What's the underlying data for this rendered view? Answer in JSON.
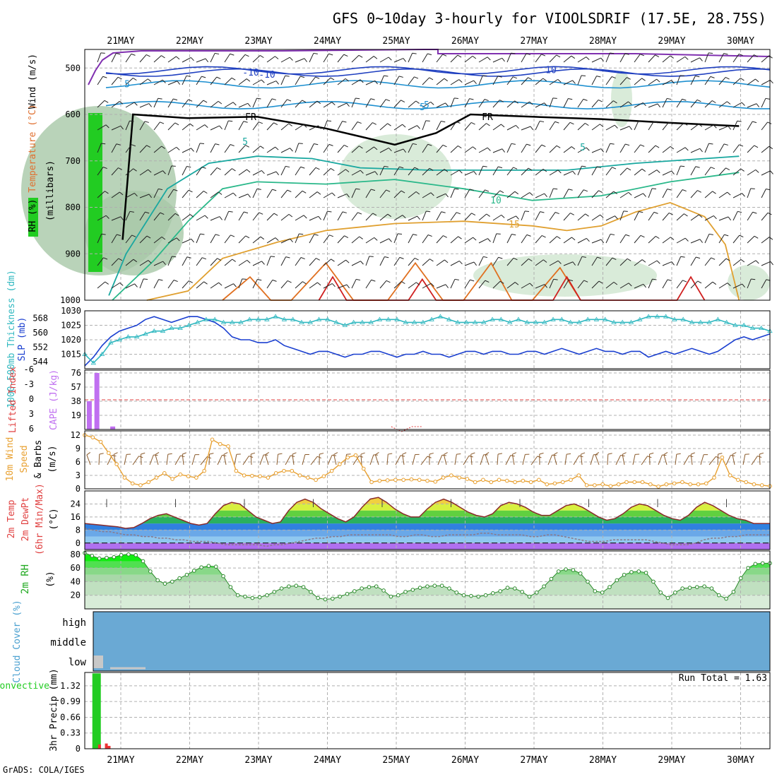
{
  "title": "GFS 0~10day 3-hourly for VIOOLSDRIF (17.5E, 28.75S)",
  "footer_credit": "GrADS: COLA/IGES",
  "colors": {
    "wind_barb": "#8a5a2b",
    "wind_speed": "#e8a030",
    "slp": "#1a3fd0",
    "thickness": "#30b8c0",
    "cape": "#c070f0",
    "lifted_index": "#e04040",
    "rh_fill": "#d4ecd4",
    "rh_line": "#2a8a2a",
    "cloud": "#6aa9d4",
    "precip_total": "#22cc22",
    "precip_conv": "#ee3333",
    "freezing_line": "#000000"
  },
  "chart_data": [
    {
      "type": "contour",
      "panel": "upper-air",
      "ylabel_parts": [
        "RH (%)",
        "Temperature (°C)",
        "Wind (m/s)"
      ],
      "ylabel_units": "(millibars)",
      "x_date_labels": [
        "21MAY",
        "22MAY",
        "23MAY",
        "24MAY",
        "25MAY",
        "26MAY",
        "27MAY",
        "28MAY",
        "29MAY",
        "30MAY"
      ],
      "y_ticks": [
        500,
        600,
        700,
        800,
        900,
        1000
      ],
      "ylim": [
        1000,
        450
      ],
      "wind_contours": [
        {
          "label": "-10",
          "pressure": 510
        },
        {
          "label": "10",
          "pressure": 505
        },
        {
          "label": "5",
          "pressure": 535
        },
        {
          "label": "-5",
          "pressure": 580
        }
      ],
      "temperature_contour_labels": [
        "FR",
        "FR",
        "5",
        "5",
        "10",
        "15",
        "-10",
        "5"
      ],
      "temperature_contours": [
        {
          "temp": "FR",
          "color": "#000000",
          "points": [
            [
              0.55,
              870
            ],
            [
              0.7,
              600
            ],
            [
              1.5,
              608
            ],
            [
              2.5,
              605
            ],
            [
              3.5,
              630
            ],
            [
              4.5,
              665
            ],
            [
              5.1,
              640
            ],
            [
              5.6,
              600
            ],
            [
              6.5,
              605
            ],
            [
              7.5,
              610
            ],
            [
              8.5,
              618
            ],
            [
              9.5,
              625
            ]
          ]
        },
        {
          "temp": 5,
          "color": "#1aa8a0",
          "points": [
            [
              0.35,
              990
            ],
            [
              0.6,
              900
            ],
            [
              1.2,
              760
            ],
            [
              1.8,
              705
            ],
            [
              2.5,
              690
            ],
            [
              3.3,
              695
            ],
            [
              4.0,
              715
            ],
            [
              5.0,
              720
            ],
            [
              6.0,
              720
            ],
            [
              7.0,
              720
            ],
            [
              8.0,
              705
            ],
            [
              9.0,
              695
            ],
            [
              9.5,
              690
            ]
          ]
        },
        {
          "temp": 10,
          "color": "#2ab88a",
          "points": [
            [
              0.4,
              1000
            ],
            [
              1.0,
              915
            ],
            [
              1.5,
              830
            ],
            [
              2.0,
              760
            ],
            [
              2.5,
              745
            ],
            [
              3.5,
              750
            ],
            [
              4.5,
              740
            ],
            [
              5.5,
              760
            ],
            [
              6.5,
              785
            ],
            [
              7.5,
              775
            ],
            [
              8.5,
              745
            ],
            [
              9.5,
              725
            ]
          ]
        },
        {
          "temp": 15,
          "color": "#e0a030",
          "points": [
            [
              0.9,
              1000
            ],
            [
              1.5,
              980
            ],
            [
              2.0,
              910
            ],
            [
              2.8,
              875
            ],
            [
              3.5,
              850
            ],
            [
              4.5,
              835
            ],
            [
              5.5,
              830
            ],
            [
              6.5,
              840
            ],
            [
              7.0,
              850
            ],
            [
              7.5,
              840
            ],
            [
              8.0,
              810
            ],
            [
              8.5,
              790
            ],
            [
              9.0,
              820
            ],
            [
              9.3,
              880
            ],
            [
              9.5,
              1000
            ]
          ]
        },
        {
          "temp": 20,
          "color": "#e07020",
          "points": [
            [
              2.0,
              1000
            ],
            [
              2.4,
              950
            ],
            [
              2.7,
              1000
            ],
            [
              3.0,
              1000
            ],
            [
              3.5,
              920
            ],
            [
              3.9,
              1000
            ],
            [
              4.4,
              1000
            ],
            [
              4.8,
              920
            ],
            [
              5.2,
              1000
            ],
            [
              5.5,
              1000
            ],
            [
              5.9,
              920
            ],
            [
              6.2,
              1000
            ],
            [
              6.5,
              1000
            ],
            [
              6.9,
              930
            ],
            [
              7.2,
              1000
            ]
          ]
        },
        {
          "temp": 25,
          "color": "#d02020",
          "points": [
            [
              3.4,
              1000
            ],
            [
              3.6,
              950
            ],
            [
              3.8,
              1000
            ],
            [
              4.7,
              1000
            ],
            [
              4.9,
              955
            ],
            [
              5.1,
              1000
            ],
            [
              6.8,
              1000
            ],
            [
              7.0,
              950
            ],
            [
              7.2,
              1000
            ],
            [
              8.6,
              1000
            ],
            [
              8.8,
              950
            ],
            [
              9.0,
              1000
            ]
          ]
        }
      ]
    },
    {
      "type": "line",
      "panel": "slp-thickness",
      "ylabel_left": "1000-500mb Thickness (dm)",
      "ylabel_right": "SLP (mb)",
      "left_ticks": [
        544,
        552,
        560,
        568
      ],
      "right_ticks": [
        1015,
        1020,
        1025,
        1030
      ],
      "ylim_slp": [
        1010,
        1030
      ],
      "series": [
        {
          "name": "SLP",
          "color": "#1a3fd0",
          "values": [
            1011,
            1014,
            1018,
            1021,
            1023,
            1024,
            1025,
            1027,
            1028,
            1027,
            1026,
            1027,
            1028,
            1028,
            1027,
            1026,
            1024,
            1021,
            1020,
            1020,
            1019,
            1019,
            1020,
            1018,
            1017,
            1016,
            1015,
            1016,
            1016,
            1015,
            1014,
            1015,
            1015,
            1016,
            1016,
            1015,
            1014,
            1015,
            1015,
            1016,
            1015,
            1015,
            1014,
            1015,
            1016,
            1016,
            1015,
            1016,
            1016,
            1015,
            1015,
            1016,
            1016,
            1015,
            1016,
            1017,
            1016,
            1015,
            1016,
            1017,
            1016,
            1016,
            1015,
            1016,
            1016,
            1014,
            1015,
            1016,
            1015,
            1016,
            1017,
            1016,
            1015,
            1016,
            1018,
            1020,
            1021,
            1020,
            1021,
            1022
          ]
        },
        {
          "name": "1000-500mb Thickness",
          "color": "#30b8c0",
          "values": [
            1015,
            1012,
            1015,
            1019,
            1020,
            1021,
            1021,
            1022,
            1023,
            1023,
            1024,
            1024,
            1025,
            1026,
            1027,
            1027,
            1026,
            1026,
            1026,
            1027,
            1027,
            1027,
            1028,
            1027,
            1027,
            1026,
            1026,
            1027,
            1027,
            1026,
            1025,
            1026,
            1026,
            1026,
            1027,
            1027,
            1027,
            1026,
            1026,
            1026,
            1027,
            1028,
            1027,
            1026,
            1026,
            1026,
            1026,
            1027,
            1027,
            1026,
            1027,
            1026,
            1026,
            1026,
            1027,
            1027,
            1026,
            1026,
            1027,
            1027,
            1027,
            1026,
            1026,
            1026,
            1027,
            1028,
            1028,
            1028,
            1027,
            1027,
            1026,
            1026,
            1026,
            1027,
            1026,
            1025,
            1025,
            1024,
            1024,
            1023
          ]
        }
      ]
    },
    {
      "type": "bar",
      "panel": "cape-li",
      "ylabel_left": "Lifted Index",
      "ylabel_right": "CAPE (J/kg)",
      "left_ticks": [
        "6",
        "3",
        "0",
        "-3",
        "-6"
      ],
      "right_ticks": [
        19,
        38,
        57,
        76
      ],
      "ylim_cape": [
        0,
        76
      ],
      "cape_bars": [
        {
          "x": 0.03,
          "value": 38
        },
        {
          "x": 0.14,
          "value": 76
        },
        {
          "x": 0.37,
          "value": 4
        }
      ],
      "li_points": [
        {
          "x": 4.45,
          "value": 0
        },
        {
          "x": 4.6,
          "value": -1
        },
        {
          "x": 4.75,
          "value": 0
        },
        {
          "x": 4.9,
          "value": 0
        }
      ]
    },
    {
      "type": "line",
      "panel": "wind10m",
      "ylabel_parts": [
        "10m Wind",
        "Speed",
        "& Barbs",
        "(m/s)"
      ],
      "ticks": [
        0,
        3,
        6,
        9,
        12
      ],
      "ylim": [
        0,
        12
      ],
      "series": [
        {
          "name": "Wind Speed",
          "color": "#e8a030",
          "values": [
            12,
            11.5,
            10.5,
            8,
            5.5,
            2.5,
            1.2,
            0.8,
            1.5,
            2.5,
            3.5,
            2.2,
            3.2,
            2.8,
            2.5,
            4,
            11,
            10,
            9.5,
            4,
            3,
            2.9,
            2.8,
            2.5,
            3.5,
            4,
            4,
            3,
            2.5,
            2,
            2.8,
            4,
            5.5,
            7,
            7.5,
            4.5,
            1.5,
            1.8,
            1.9,
            2,
            2,
            2.1,
            2,
            1.8,
            1.6,
            2.5,
            3,
            2.5,
            2.2,
            1.5,
            2,
            1.5,
            2,
            1.8,
            1.5,
            1.8,
            1.5,
            2,
            1,
            1.2,
            1.5,
            2,
            3,
            0.8,
            0.8,
            1,
            0.6,
            1,
            1.5,
            1.5,
            1.5,
            1,
            0.5,
            1,
            1.2,
            1.5,
            1,
            1,
            1.2,
            2.5,
            7,
            3,
            2,
            1.5,
            1,
            0.8,
            0.6
          ]
        }
      ]
    },
    {
      "type": "area",
      "panel": "temperature",
      "ylabel_parts": [
        "2m Temp",
        "2m DewPt",
        "(6hr Min/Max)",
        "(°C)"
      ],
      "ticks": [
        0,
        8,
        16,
        24
      ],
      "ylim": [
        -4,
        32
      ],
      "series": [
        {
          "name": "2m Temp",
          "color": "#8a2a2a",
          "values": [
            12,
            11.5,
            11,
            10.5,
            10,
            9,
            9.5,
            12,
            15,
            17,
            18,
            16,
            14,
            12,
            11,
            12,
            18,
            23,
            25,
            24,
            20,
            16,
            14,
            12,
            13,
            20,
            25,
            27,
            25,
            21,
            18,
            15,
            13,
            16,
            22,
            27,
            28,
            25,
            21,
            18,
            16,
            16,
            21,
            25,
            27,
            25,
            22,
            19,
            17,
            16,
            18,
            23,
            25,
            24,
            22,
            19,
            17,
            17,
            20,
            23,
            24,
            22,
            19,
            16,
            14,
            15,
            18,
            22,
            24,
            23,
            20,
            17,
            15,
            14,
            17,
            22,
            25,
            23,
            20,
            17,
            15,
            14,
            12,
            12,
            12
          ]
        },
        {
          "name": "2m DewPt",
          "color": "#8a7a8a",
          "values": [
            9,
            8,
            7,
            7,
            6,
            5,
            5,
            4,
            4,
            3,
            3,
            2,
            2,
            1,
            1,
            1,
            0,
            -1,
            -1,
            -1,
            -1,
            -1,
            -2,
            -1,
            -1,
            0,
            1,
            2,
            3,
            3,
            4,
            4,
            5,
            5,
            5,
            5,
            5,
            5,
            4,
            4,
            5,
            5,
            4,
            4,
            5,
            5,
            5,
            5,
            6,
            6,
            5,
            5,
            5,
            5,
            4,
            4,
            5,
            5,
            4,
            3,
            2,
            1,
            1,
            1,
            2,
            2,
            2,
            2,
            2,
            1,
            0,
            -1,
            -1,
            -1,
            0,
            2,
            3,
            3,
            4,
            4,
            5,
            5,
            5,
            5
          ]
        }
      ]
    },
    {
      "type": "area",
      "panel": "rh2m",
      "ylabel_parts": [
        "2m RH",
        "(%)"
      ],
      "ticks": [
        20,
        40,
        60,
        80
      ],
      "ylim": [
        0,
        85
      ],
      "series": [
        {
          "name": "2m RH",
          "color": "#2a8a2a",
          "values": [
            82,
            78,
            74,
            75,
            76,
            79,
            80,
            79,
            70,
            55,
            42,
            37,
            40,
            45,
            50,
            56,
            61,
            63,
            62,
            48,
            32,
            20,
            18,
            16,
            17,
            20,
            25,
            30,
            33,
            34,
            32,
            25,
            16,
            14,
            15,
            18,
            22,
            26,
            30,
            32,
            33,
            27,
            18,
            20,
            25,
            28,
            31,
            33,
            34,
            34,
            30,
            24,
            20,
            19,
            18,
            20,
            23,
            26,
            31,
            30,
            25,
            18,
            24,
            33,
            44,
            55,
            58,
            57,
            52,
            40,
            26,
            24,
            32,
            42,
            50,
            54,
            55,
            53,
            40,
            24,
            16,
            24,
            30,
            31,
            32,
            33,
            30,
            20,
            15,
            25,
            45,
            60,
            66,
            67,
            67
          ]
        }
      ]
    },
    {
      "type": "bar",
      "panel": "cloud",
      "ylabel": "Cloud Cover (%)",
      "levels": [
        "high",
        "middle",
        "low"
      ],
      "cloud_levels": [
        {
          "level": "high",
          "cover": 100
        },
        {
          "level": "middle",
          "cover": 100
        },
        {
          "level": "low",
          "cover": 100
        }
      ]
    },
    {
      "type": "bar",
      "panel": "precip",
      "ylabel_left": "Total / Rain Convective",
      "ylabel_right": "3hr Precip (mm)",
      "ticks": [
        "0",
        "0.33",
        "0.66",
        "0.99",
        "1.32"
      ],
      "ylim": [
        0,
        1.6
      ],
      "run_total_label": "Run Total = 1.63",
      "precip_total": [
        {
          "x": 0.11,
          "value": 1.58
        }
      ],
      "precip_conv": [
        {
          "x": 0.07,
          "value": 0.09
        },
        {
          "x": 0.17,
          "value": 0.11
        },
        {
          "x": 0.21,
          "value": 0.06
        }
      ]
    }
  ]
}
